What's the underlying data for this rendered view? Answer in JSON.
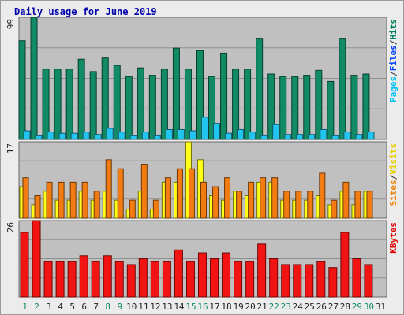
{
  "chart_data": {
    "type": "bar",
    "title": "Daily usage for June 2019",
    "categories": [
      "1",
      "2",
      "3",
      "4",
      "5",
      "6",
      "7",
      "8",
      "9",
      "10",
      "11",
      "12",
      "13",
      "14",
      "15",
      "16",
      "17",
      "18",
      "19",
      "20",
      "21",
      "22",
      "23",
      "24",
      "25",
      "26",
      "27",
      "28",
      "29",
      "30",
      "31"
    ],
    "weekend_days": [
      "1",
      "2",
      "8",
      "9",
      "15",
      "16",
      "22",
      "23",
      "29",
      "30"
    ],
    "panels": [
      {
        "name": "hits-files-pages",
        "ymax_label": "99",
        "ymax": 99,
        "legend": [
          {
            "label": "Pages",
            "color": "#00c0f0"
          },
          {
            "label": "/",
            "color": "#333333"
          },
          {
            "label": "Files",
            "color": "#0040ff"
          },
          {
            "label": "/",
            "color": "#333333"
          },
          {
            "label": "Hits",
            "color": "#008060"
          }
        ],
        "series": [
          {
            "name": "Hits",
            "color": "#118a66",
            "values": [
              80,
              99,
              57,
              57,
              57,
              65,
              55,
              66,
              60,
              51,
              58,
              52,
              57,
              74,
              57,
              72,
              51,
              70,
              57,
              57,
              82,
              53,
              51,
              51,
              52,
              56,
              47,
              82,
              52,
              53,
              0
            ]
          },
          {
            "name": "Files",
            "color": "#1e6adf",
            "values": [
              0,
              0,
              0,
              0,
              0,
              0,
              0,
              0,
              0,
              0,
              0,
              0,
              0,
              0,
              0,
              0,
              0,
              0,
              0,
              0,
              0,
              0,
              0,
              0,
              0,
              0,
              0,
              0,
              0,
              0,
              0
            ]
          },
          {
            "name": "Pages",
            "color": "#22c5ef",
            "values": [
              7,
              3,
              6,
              5,
              5,
              6,
              4,
              9,
              6,
              3,
              6,
              3,
              8,
              8,
              7,
              18,
              13,
              5,
              8,
              6,
              3,
              12,
              4,
              4,
              4,
              8,
              3,
              6,
              4,
              6,
              0
            ]
          }
        ]
      },
      {
        "name": "visits-sites",
        "ymax_label": "17",
        "ymax": 17,
        "legend": [
          {
            "label": "Sites",
            "color": "#f08000"
          },
          {
            "label": "/",
            "color": "#333333"
          },
          {
            "label": "Visits",
            "color": "#e8d000"
          }
        ],
        "series": [
          {
            "name": "Visits",
            "color": "#ffff1a",
            "values": [
              7,
              3,
              6,
              4,
              4,
              6,
              4,
              6,
              4,
              2,
              6,
              2,
              8,
              8,
              17,
              13,
              5,
              4,
              6,
              5,
              8,
              8,
              4,
              4,
              4,
              5,
              3,
              6,
              3,
              6,
              0
            ]
          },
          {
            "name": "Sites",
            "color": "#f27c11",
            "values": [
              9,
              5,
              8,
              8,
              8,
              8,
              6,
              13,
              11,
              4,
              12,
              4,
              9,
              11,
              11,
              8,
              7,
              9,
              6,
              8,
              9,
              9,
              6,
              6,
              6,
              10,
              4,
              8,
              6,
              6,
              0
            ]
          }
        ]
      },
      {
        "name": "kbytes",
        "ymax_label": "26",
        "ymax": 26,
        "legend": [
          {
            "label": "KBytes",
            "color": "#e00000"
          }
        ],
        "series": [
          {
            "name": "KBytes",
            "color": "#f21313",
            "values": [
              22,
              26,
              12,
              12,
              12,
              14,
              12,
              14,
              12,
              11,
              13,
              12,
              12,
              16,
              12,
              15,
              13,
              15,
              12,
              12,
              18,
              13,
              11,
              11,
              11,
              12,
              10,
              22,
              13,
              11,
              0
            ]
          }
        ]
      }
    ]
  }
}
